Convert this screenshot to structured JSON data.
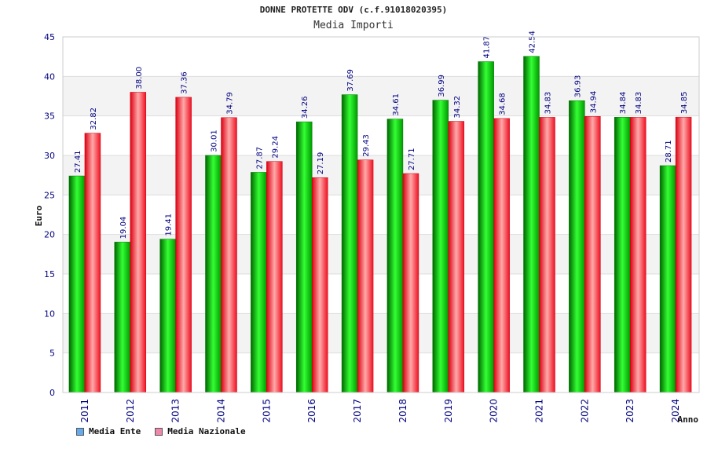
{
  "chart_data": {
    "type": "bar",
    "title": "DONNE PROTETTE ODV (c.f.91018020395)",
    "subtitle": "Media Importi",
    "xlabel": "Anno",
    "ylabel": "Euro",
    "ylim": [
      0,
      45
    ],
    "yticks": [
      0,
      5,
      10,
      15,
      20,
      25,
      30,
      35,
      40,
      45
    ],
    "grid": true,
    "legend_placement": "bottom-left",
    "categories": [
      "2011",
      "2012",
      "2013",
      "2014",
      "2015",
      "2016",
      "2017",
      "2018",
      "2019",
      "2020",
      "2021",
      "2022",
      "2023",
      "2024"
    ],
    "series": [
      {
        "name": "Media Ente",
        "color": "#00cc00",
        "legend_color": "#66aaee",
        "values": [
          27.41,
          19.04,
          19.41,
          30.01,
          27.87,
          34.26,
          37.69,
          34.61,
          36.99,
          41.87,
          42.54,
          36.93,
          34.84,
          28.71
        ],
        "labels": [
          "27.41",
          "19.04",
          "19.41",
          "30.01",
          "27.87",
          "34.26",
          "37.69",
          "34.61",
          "36.99",
          "41.87",
          "42.54",
          "36.93",
          "34.84",
          "28.71"
        ]
      },
      {
        "name": "Media Nazionale",
        "color": "#ee2233",
        "legend_color": "#ee88aa",
        "values": [
          32.82,
          38.0,
          37.36,
          34.79,
          29.24,
          27.19,
          29.43,
          27.71,
          34.32,
          34.68,
          34.83,
          34.94,
          34.83,
          34.85
        ],
        "labels": [
          "32.82",
          "38.00",
          "37.36",
          "34.79",
          "29.24",
          "27.19",
          "29.43",
          "27.71",
          "34.32",
          "34.68",
          "34.83",
          "34.94",
          "34.83",
          "34.85"
        ]
      }
    ]
  }
}
